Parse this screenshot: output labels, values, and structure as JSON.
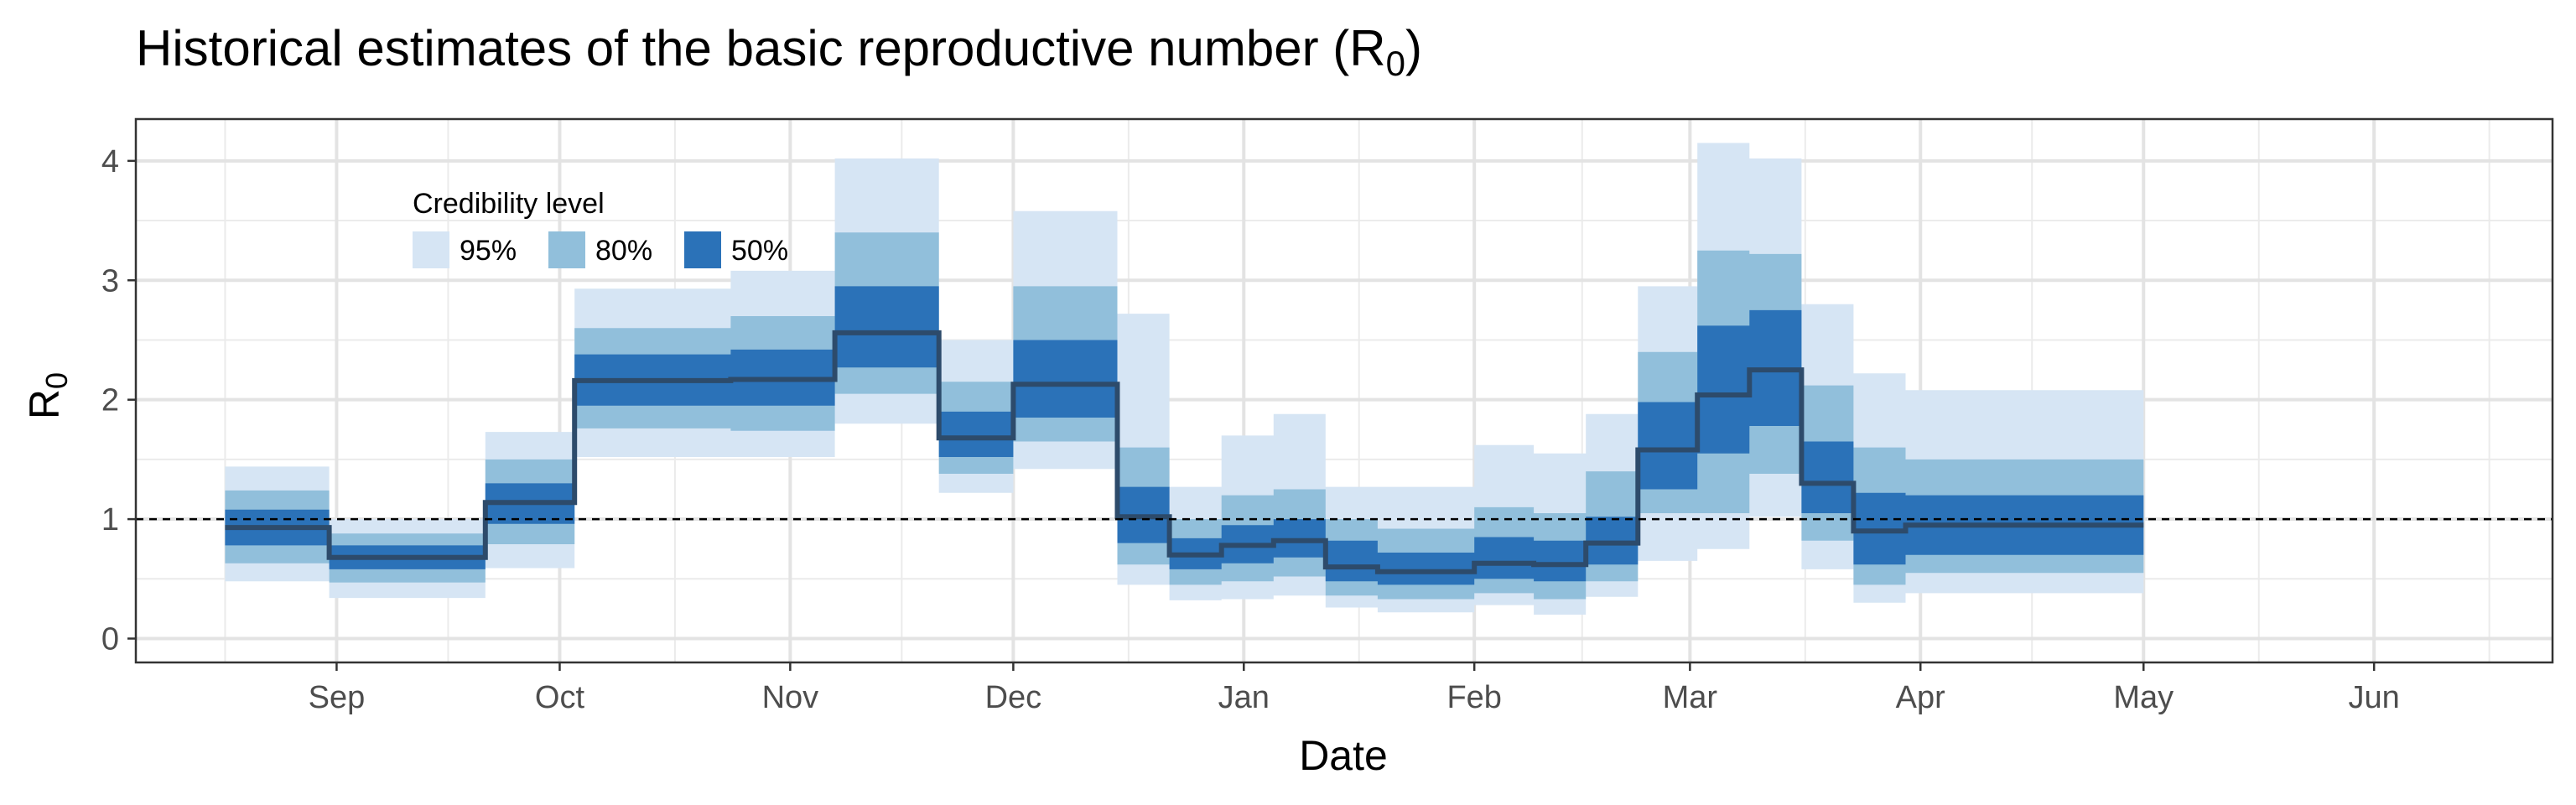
{
  "chart_data": {
    "type": "area",
    "title": "Historical estimates of the basic reproductive number (R",
    "title_subscript": "0",
    "title_suffix": ")",
    "xlabel": "Date",
    "ylabel": "R",
    "ylabel_subscript": "0",
    "x_range": [
      "2019-08-05",
      "2020-06-25"
    ],
    "ylim": [
      -0.2,
      4.35
    ],
    "y_ticks": [
      0,
      1,
      2,
      3,
      4
    ],
    "x_ticks": [
      {
        "date": "2019-09-01",
        "label": "Sep"
      },
      {
        "date": "2019-10-01",
        "label": "Oct"
      },
      {
        "date": "2019-11-01",
        "label": "Nov"
      },
      {
        "date": "2019-12-01",
        "label": "Dec"
      },
      {
        "date": "2020-01-01",
        "label": "Jan"
      },
      {
        "date": "2020-02-01",
        "label": "Feb"
      },
      {
        "date": "2020-03-01",
        "label": "Mar"
      },
      {
        "date": "2020-04-01",
        "label": "Apr"
      },
      {
        "date": "2020-05-01",
        "label": "May"
      },
      {
        "date": "2020-06-01",
        "label": "Jun"
      }
    ],
    "reference_line": 1,
    "grid": true,
    "legend": {
      "title": "Credibility level",
      "position": "top-left",
      "items": [
        {
          "label": "95%",
          "color": "#d6e5f4"
        },
        {
          "label": "80%",
          "color": "#91bfdb"
        },
        {
          "label": "50%",
          "color": "#2b72b8"
        }
      ]
    },
    "median_color": "#2d4b6b",
    "segments": [
      {
        "start": "2019-08-17",
        "end": "2019-08-31",
        "median": 0.93,
        "lo50": 0.78,
        "hi50": 1.08,
        "lo80": 0.63,
        "hi80": 1.24,
        "lo95": 0.48,
        "hi95": 1.44
      },
      {
        "start": "2019-08-31",
        "end": "2019-09-21",
        "median": 0.68,
        "lo50": 0.58,
        "hi50": 0.78,
        "lo80": 0.47,
        "hi80": 0.88,
        "lo95": 0.34,
        "hi95": 1.0
      },
      {
        "start": "2019-09-21",
        "end": "2019-10-03",
        "median": 1.14,
        "lo50": 0.96,
        "hi50": 1.3,
        "lo80": 0.79,
        "hi80": 1.5,
        "lo95": 0.59,
        "hi95": 1.73
      },
      {
        "start": "2019-10-03",
        "end": "2019-10-24",
        "median": 2.16,
        "lo50": 1.95,
        "hi50": 2.38,
        "lo80": 1.76,
        "hi80": 2.6,
        "lo95": 1.52,
        "hi95": 2.93
      },
      {
        "start": "2019-10-24",
        "end": "2019-11-07",
        "median": 2.17,
        "lo50": 1.95,
        "hi50": 2.42,
        "lo80": 1.74,
        "hi80": 2.7,
        "lo95": 1.52,
        "hi95": 3.08
      },
      {
        "start": "2019-11-07",
        "end": "2019-11-21",
        "median": 2.56,
        "lo50": 2.27,
        "hi50": 2.95,
        "lo80": 2.05,
        "hi80": 3.4,
        "lo95": 1.8,
        "hi95": 4.02
      },
      {
        "start": "2019-11-21",
        "end": "2019-12-01",
        "median": 1.68,
        "lo50": 1.52,
        "hi50": 1.9,
        "lo80": 1.38,
        "hi80": 2.15,
        "lo95": 1.22,
        "hi95": 2.5
      },
      {
        "start": "2019-12-01",
        "end": "2019-12-15",
        "median": 2.13,
        "lo50": 1.85,
        "hi50": 2.5,
        "lo80": 1.65,
        "hi80": 2.95,
        "lo95": 1.42,
        "hi95": 3.58
      },
      {
        "start": "2019-12-15",
        "end": "2019-12-22",
        "median": 1.02,
        "lo50": 0.8,
        "hi50": 1.27,
        "lo80": 0.62,
        "hi80": 1.6,
        "lo95": 0.45,
        "hi95": 2.72
      },
      {
        "start": "2019-12-22",
        "end": "2019-12-29",
        "median": 0.7,
        "lo50": 0.58,
        "hi50": 0.84,
        "lo80": 0.45,
        "hi80": 1.0,
        "lo95": 0.32,
        "hi95": 1.27
      },
      {
        "start": "2019-12-29",
        "end": "2020-01-05",
        "median": 0.78,
        "lo50": 0.63,
        "hi50": 0.95,
        "lo80": 0.48,
        "hi80": 1.2,
        "lo95": 0.33,
        "hi95": 1.7
      },
      {
        "start": "2020-01-05",
        "end": "2020-01-12",
        "median": 0.82,
        "lo50": 0.68,
        "hi50": 1.0,
        "lo80": 0.52,
        "hi80": 1.25,
        "lo95": 0.36,
        "hi95": 1.88
      },
      {
        "start": "2020-01-12",
        "end": "2020-01-19",
        "median": 0.6,
        "lo50": 0.48,
        "hi50": 0.82,
        "lo80": 0.36,
        "hi80": 1.0,
        "lo95": 0.26,
        "hi95": 1.27
      },
      {
        "start": "2020-01-19",
        "end": "2020-02-01",
        "median": 0.56,
        "lo50": 0.45,
        "hi50": 0.72,
        "lo80": 0.33,
        "hi80": 0.92,
        "lo95": 0.22,
        "hi95": 1.27
      },
      {
        "start": "2020-02-01",
        "end": "2020-02-09",
        "median": 0.63,
        "lo50": 0.5,
        "hi50": 0.85,
        "lo80": 0.38,
        "hi80": 1.1,
        "lo95": 0.28,
        "hi95": 1.62
      },
      {
        "start": "2020-02-09",
        "end": "2020-02-16",
        "median": 0.62,
        "lo50": 0.48,
        "hi50": 0.82,
        "lo80": 0.33,
        "hi80": 1.05,
        "lo95": 0.2,
        "hi95": 1.55
      },
      {
        "start": "2020-02-16",
        "end": "2020-02-23",
        "median": 0.8,
        "lo50": 0.62,
        "hi50": 1.02,
        "lo80": 0.48,
        "hi80": 1.4,
        "lo95": 0.35,
        "hi95": 1.88
      },
      {
        "start": "2020-02-23",
        "end": "2020-03-02",
        "median": 1.58,
        "lo50": 1.25,
        "hi50": 1.98,
        "lo80": 1.05,
        "hi80": 2.4,
        "lo95": 0.65,
        "hi95": 2.95
      },
      {
        "start": "2020-03-02",
        "end": "2020-03-09",
        "median": 2.04,
        "lo50": 1.55,
        "hi50": 2.62,
        "lo80": 1.05,
        "hi80": 3.25,
        "lo95": 0.75,
        "hi95": 4.15
      },
      {
        "start": "2020-03-09",
        "end": "2020-03-16",
        "median": 2.25,
        "lo50": 1.78,
        "hi50": 2.75,
        "lo80": 1.38,
        "hi80": 3.22,
        "lo95": 1.02,
        "hi95": 4.02
      },
      {
        "start": "2020-03-16",
        "end": "2020-03-23",
        "median": 1.3,
        "lo50": 1.05,
        "hi50": 1.65,
        "lo80": 0.82,
        "hi80": 2.12,
        "lo95": 0.58,
        "hi95": 2.8
      },
      {
        "start": "2020-03-23",
        "end": "2020-03-30",
        "median": 0.9,
        "lo50": 0.62,
        "hi50": 1.22,
        "lo80": 0.45,
        "hi80": 1.6,
        "lo95": 0.3,
        "hi95": 2.22
      },
      {
        "start": "2020-03-30",
        "end": "2020-05-01",
        "median": 0.95,
        "lo50": 0.7,
        "hi50": 1.2,
        "lo80": 0.55,
        "hi80": 1.5,
        "lo95": 0.38,
        "hi95": 2.08
      }
    ]
  }
}
